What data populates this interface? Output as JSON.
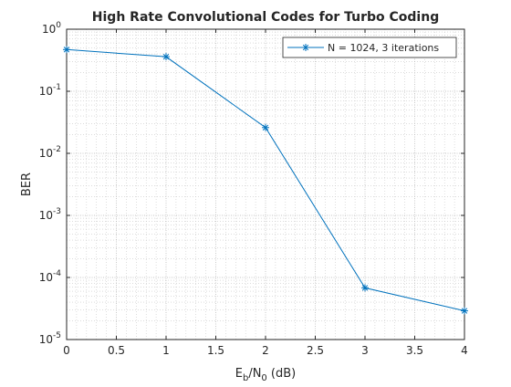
{
  "chart_data": {
    "type": "line",
    "title": "High Rate Convolutional Codes for Turbo Coding",
    "xlabel": {
      "main": "E",
      "sub1": "b",
      "mid": "/N",
      "sub2": "0",
      "tail": " (dB)"
    },
    "ylabel": "BER",
    "xlim": [
      0,
      4
    ],
    "ylim": [
      1e-05,
      1
    ],
    "yscale": "log",
    "grid": true,
    "minor_grid": true,
    "legend_position": "top-right",
    "x_ticks": [
      "0",
      "0.5",
      "1",
      "1.5",
      "2",
      "2.5",
      "3",
      "3.5",
      "4"
    ],
    "y_ticks": [
      {
        "base": "10",
        "exp": "0"
      },
      {
        "base": "10",
        "exp": "-1"
      },
      {
        "base": "10",
        "exp": "-2"
      },
      {
        "base": "10",
        "exp": "-3"
      },
      {
        "base": "10",
        "exp": "-4"
      },
      {
        "base": "10",
        "exp": "-5"
      }
    ],
    "series": [
      {
        "name": "N = 1024, 3 iterations",
        "color": "#0072BD",
        "marker": "asterisk",
        "x": [
          0,
          1,
          2,
          3,
          4
        ],
        "y": [
          0.47,
          0.36,
          0.026,
          6.8e-05,
          2.9e-05
        ]
      }
    ]
  }
}
